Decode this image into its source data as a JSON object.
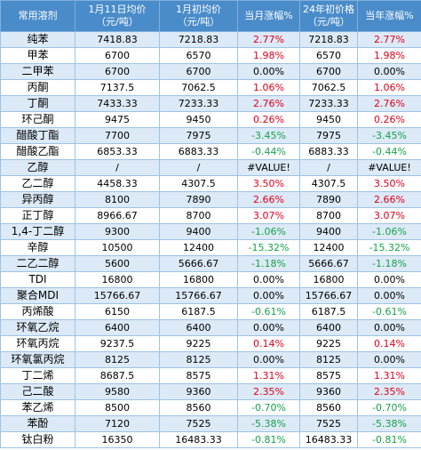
{
  "headers": [
    "常用溶剂",
    "1月11日均价\n（元/吨）",
    "1月初均价\n（元/吨）",
    "当月涨幅%",
    "24年初价格\n（元/吨）",
    "当年涨幅%"
  ],
  "rows": [
    [
      "纯苯",
      "7418.83",
      "7218.83",
      "2.77%",
      "7218.83",
      "2.77%"
    ],
    [
      "甲苯",
      "6700",
      "6570",
      "1.98%",
      "6570",
      "1.98%"
    ],
    [
      "二甲苯",
      "6700",
      "6700",
      "0.00%",
      "6700",
      "0.00%"
    ],
    [
      "丙酮",
      "7137.5",
      "7062.5",
      "1.06%",
      "7062.5",
      "1.06%"
    ],
    [
      "丁酮",
      "7433.33",
      "7233.33",
      "2.76%",
      "7233.33",
      "2.76%"
    ],
    [
      "环己酮",
      "9475",
      "9450",
      "0.26%",
      "9450",
      "0.26%"
    ],
    [
      "醋酸丁酯",
      "7700",
      "7975",
      "-3.45%",
      "7975",
      "-3.45%"
    ],
    [
      "醋酸乙酯",
      "6853.33",
      "6883.33",
      "-0.44%",
      "6883.33",
      "-0.44%"
    ],
    [
      "乙醇",
      "/",
      "/",
      "#VALUE!",
      "/",
      "#VALUE!"
    ],
    [
      "乙二醇",
      "4458.33",
      "4307.5",
      "3.50%",
      "4307.5",
      "3.50%"
    ],
    [
      "异丙醇",
      "8100",
      "7890",
      "2.66%",
      "7890",
      "2.66%"
    ],
    [
      "正丁醇",
      "8966.67",
      "8700",
      "3.07%",
      "8700",
      "3.07%"
    ],
    [
      "1,4-丁二醇",
      "9300",
      "9400",
      "-1.06%",
      "9400",
      "-1.06%"
    ],
    [
      "辛醇",
      "10500",
      "12400",
      "-15.32%",
      "12400",
      "-15.32%"
    ],
    [
      "二乙二醇",
      "5600",
      "5666.67",
      "-1.18%",
      "5666.67",
      "-1.18%"
    ],
    [
      "TDI",
      "16800",
      "16800",
      "0.00%",
      "16800",
      "0.00%"
    ],
    [
      "聚合MDI",
      "15766.67",
      "15766.67",
      "0.00%",
      "15766.67",
      "0.00%"
    ],
    [
      "丙烯酸",
      "6150",
      "6187.5",
      "-0.61%",
      "6187.5",
      "-0.61%"
    ],
    [
      "环氧乙烷",
      "6400",
      "6400",
      "0.00%",
      "6400",
      "0.00%"
    ],
    [
      "环氧丙烷",
      "9237.5",
      "9225",
      "0.14%",
      "9225",
      "0.14%"
    ],
    [
      "环氧氯丙烷",
      "8125",
      "8125",
      "0.00%",
      "8125",
      "0.00%"
    ],
    [
      "丁二烯",
      "8687.5",
      "8575",
      "1.31%",
      "8575",
      "1.31%"
    ],
    [
      "己二酸",
      "9580",
      "9360",
      "2.35%",
      "9360",
      "2.35%"
    ],
    [
      "苯乙烯",
      "8500",
      "8560",
      "-0.70%",
      "8560",
      "-0.70%"
    ],
    [
      "苯酚",
      "7120",
      "7525",
      "-5.38%",
      "7525",
      "-5.38%"
    ],
    [
      "钛白粉",
      "16350",
      "16483.33",
      "-0.81%",
      "16483.33",
      "-0.81%"
    ]
  ]
}
